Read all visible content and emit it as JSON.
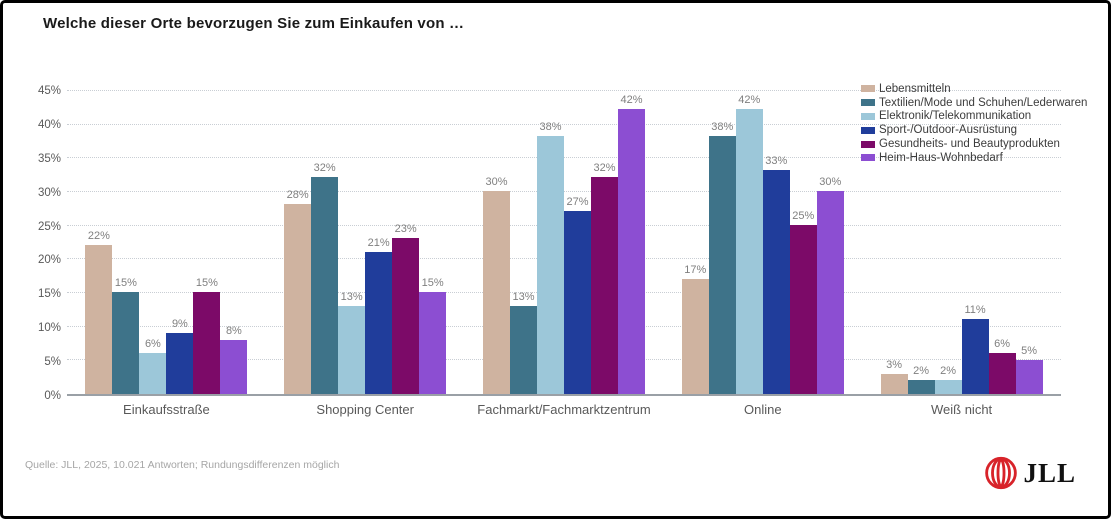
{
  "title": "Welche dieser Orte bevorzugen Sie zum Einkaufen von …",
  "source_note": "Quelle: JLL, 2025, 10.021 Antworten; Rundungsdifferenzen möglich",
  "logo": {
    "text": "JLL",
    "mark_icon": "jll-globe-mark",
    "mark_color": "#d8232a",
    "text_color": "#111111"
  },
  "chart_data": {
    "type": "bar",
    "title": "Welche dieser Orte bevorzugen Sie zum Einkaufen von …",
    "categories": [
      "Einkaufsstraße",
      "Shopping Center",
      "Fachmarkt/Fachmarktzentrum",
      "Online",
      "Weiß nicht"
    ],
    "series": [
      {
        "name": "Lebensmitteln",
        "color": "#cfb3a0",
        "values": [
          22,
          28,
          30,
          17,
          3
        ]
      },
      {
        "name": "Textilien/Mode und Schuhen/Lederwaren",
        "color": "#3e7389",
        "values": [
          15,
          32,
          13,
          38,
          2
        ]
      },
      {
        "name": "Elektronik/Telekommunikation",
        "color": "#9cc7d9",
        "values": [
          6,
          13,
          38,
          42,
          2
        ]
      },
      {
        "name": "Sport-/Outdoor-Ausrüstung",
        "color": "#203d9b",
        "values": [
          9,
          21,
          27,
          33,
          11
        ]
      },
      {
        "name": "Gesundheits- und Beautyprodukten",
        "color": "#7c0a68",
        "values": [
          15,
          23,
          32,
          25,
          6
        ]
      },
      {
        "name": "Heim-Haus-Wohnbedarf",
        "color": "#8c4ed2",
        "values": [
          8,
          15,
          42,
          30,
          5
        ]
      }
    ],
    "ylabel": "",
    "xlabel": "",
    "ylim": [
      0,
      45
    ],
    "ytick_step": 5,
    "tick_suffix": "%",
    "bar_label_suffix": "%",
    "grid": true,
    "legend_position": "top-right"
  }
}
